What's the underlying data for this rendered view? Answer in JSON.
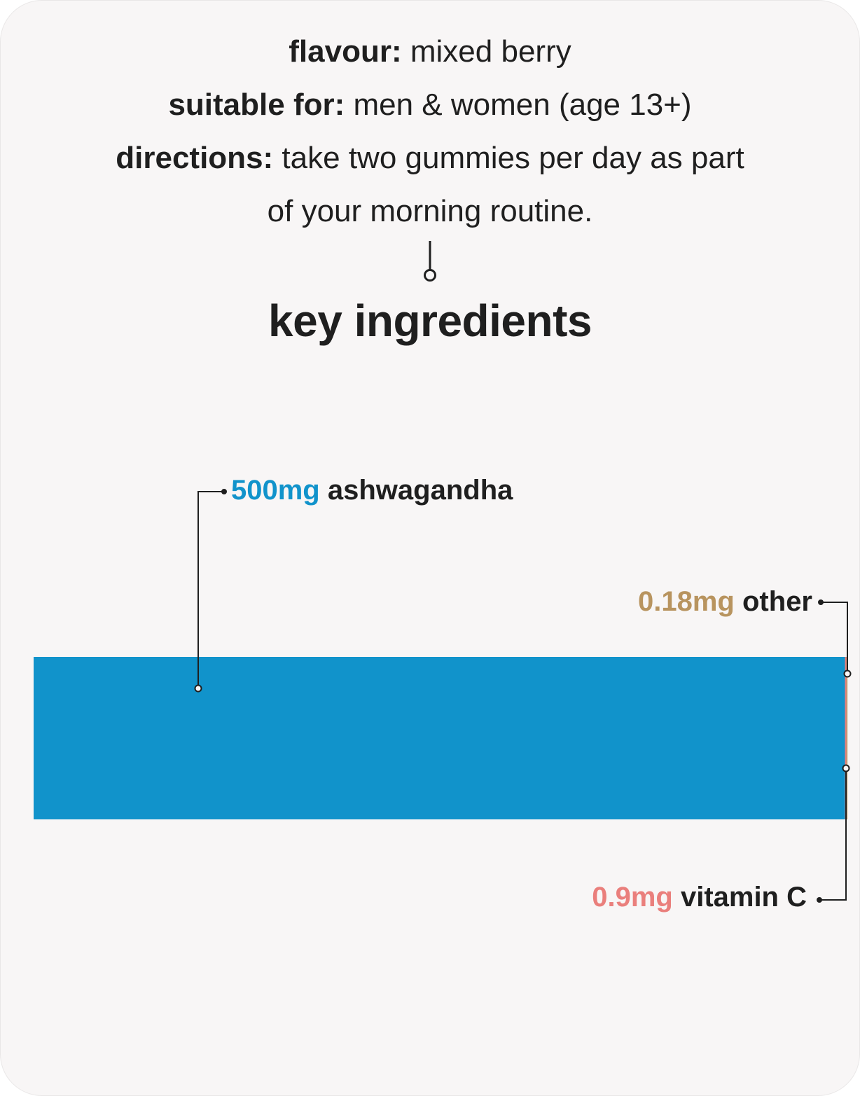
{
  "info": {
    "flavour_label": "flavour:",
    "flavour_value": "mixed berry",
    "suitable_label": "suitable for:",
    "suitable_value": "men & women (age 13+)",
    "directions_label": "directions:",
    "directions_value_line1": "take two gummies per day as part",
    "directions_value_line2": "of your morning routine."
  },
  "chart_data": {
    "type": "bar",
    "title": "key ingredients",
    "orientation": "horizontal-stacked",
    "unit": "mg",
    "series": [
      {
        "name": "ashwagandha",
        "amount_label": "500mg",
        "value": 500,
        "color": "#1193cb"
      },
      {
        "name": "vitamin C",
        "amount_label": "0.9mg",
        "value": 0.9,
        "color": "#ea7f7c"
      },
      {
        "name": "other",
        "amount_label": "0.18mg",
        "value": 0.18,
        "color": "#b8945f"
      }
    ]
  }
}
